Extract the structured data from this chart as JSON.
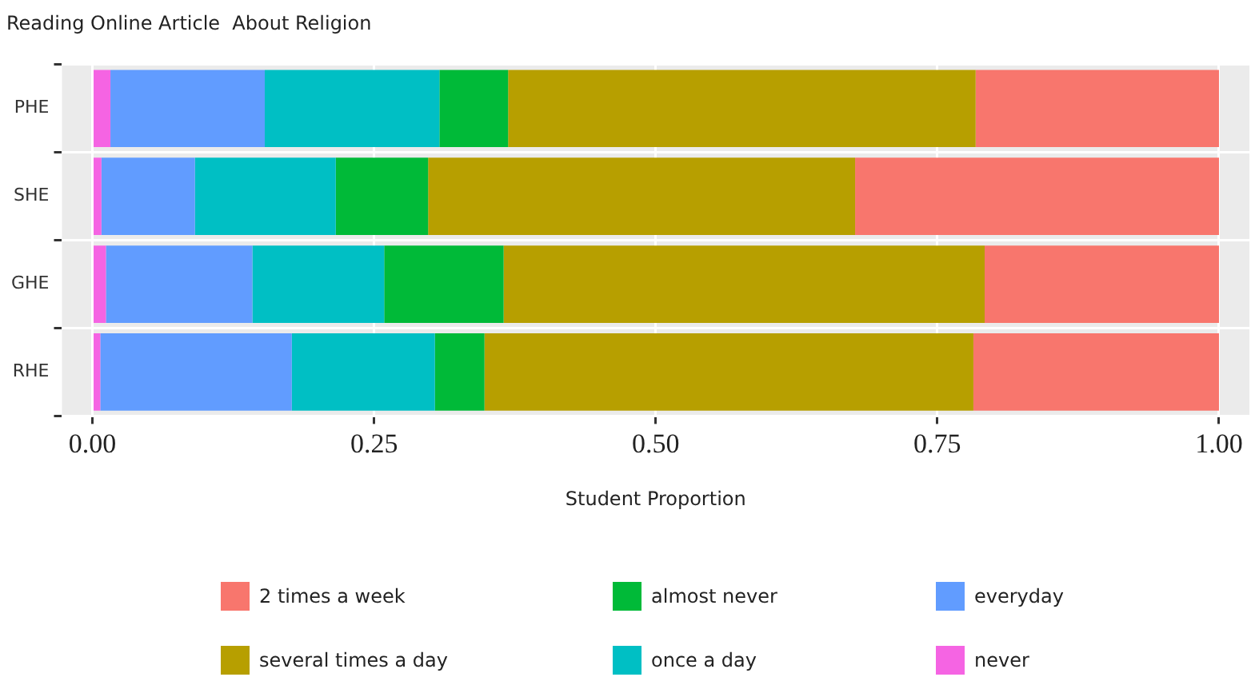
{
  "chart_data": {
    "type": "bar",
    "orientation": "horizontal",
    "stacked": true,
    "title": "Reading Online Article  About Religion",
    "xlabel": "Student Proportion",
    "categories": [
      "PHE",
      "SHE",
      "GHE",
      "RHE"
    ],
    "series": [
      {
        "name": "never",
        "color": "#f564e3",
        "values": [
          0.016,
          0.008,
          0.012,
          0.007
        ]
      },
      {
        "name": "everyday",
        "color": "#619cff",
        "values": [
          0.137,
          0.083,
          0.13,
          0.17
        ]
      },
      {
        "name": "once a day",
        "color": "#00bfc4",
        "values": [
          0.155,
          0.125,
          0.117,
          0.127
        ]
      },
      {
        "name": "almost never",
        "color": "#00ba38",
        "values": [
          0.061,
          0.082,
          0.106,
          0.044
        ]
      },
      {
        "name": "several times a day",
        "color": "#b79f00",
        "values": [
          0.415,
          0.379,
          0.427,
          0.434
        ]
      },
      {
        "name": "2 times a week",
        "color": "#f8766d",
        "values": [
          0.216,
          0.323,
          0.208,
          0.218
        ]
      }
    ],
    "xlim": [
      -0.027,
      1.027
    ],
    "xticks": [
      {
        "value": 0,
        "label": "0.00"
      },
      {
        "value": 0.25,
        "label": "0.25"
      },
      {
        "value": 0.5,
        "label": "0.50"
      },
      {
        "value": 0.75,
        "label": "0.75"
      },
      {
        "value": 1,
        "label": "1.00"
      }
    ],
    "grid": true,
    "legend": "bottom"
  }
}
